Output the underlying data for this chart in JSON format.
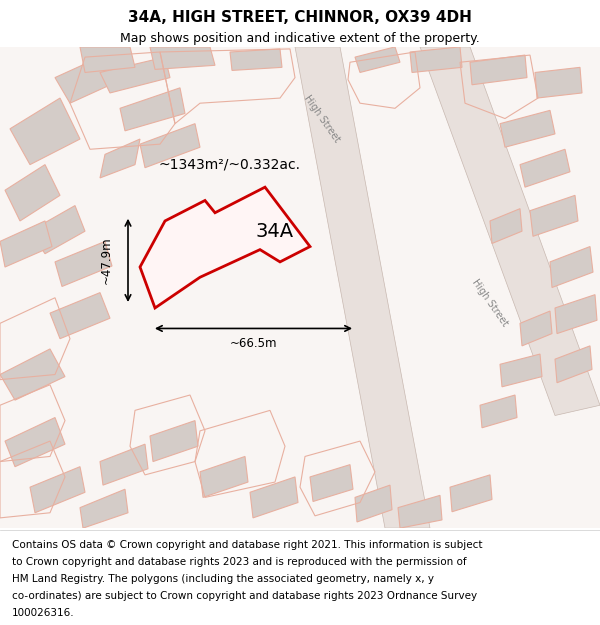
{
  "title": "34A, HIGH STREET, CHINNOR, OX39 4DH",
  "subtitle": "Map shows position and indicative extent of the property.",
  "footer_lines": [
    "Contains OS data © Crown copyright and database right 2021. This information is subject",
    "to Crown copyright and database rights 2023 and is reproduced with the permission of",
    "HM Land Registry. The polygons (including the associated geometry, namely x, y",
    "co-ordinates) are subject to Crown copyright and database rights 2023 Ordnance Survey",
    "100026316."
  ],
  "area_label": "~1343m²/~0.332ac.",
  "label_34a": "34A",
  "dim_width": "~66.5m",
  "dim_height": "~47.9m",
  "street_label_top": "High Street",
  "street_label_bottom": "High Street",
  "map_bg": "#ffffff",
  "plot_color": "#cc0000",
  "building_fill": "#d4ccc8",
  "outline_color": "#e8b0a0",
  "title_fontsize": 11,
  "subtitle_fontsize": 9,
  "footer_fontsize": 7.5
}
